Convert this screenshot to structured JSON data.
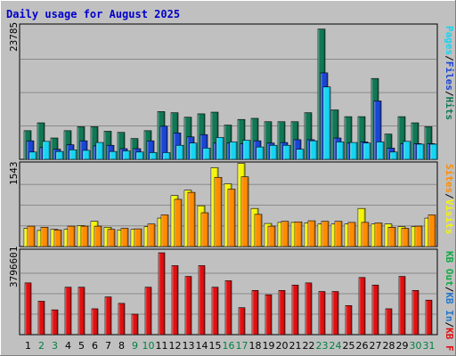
{
  "title": "Daily usage for August 2025",
  "colors": {
    "title": "#0000cc",
    "background": "#c0c0c0",
    "hits": "#117755",
    "files": "#1a46d6",
    "pages": "#17d4f2",
    "visits": "#f5f50a",
    "sites": "#ff8c00",
    "kbytes": "#e01010",
    "kb_in": "#2277cc",
    "kb_out": "#11aa44",
    "weekend": "#008040",
    "weekday": "#000000"
  },
  "chart_data": [
    {
      "type": "bar",
      "ymax_label": "23785",
      "ylim": [
        0,
        23785
      ],
      "legend": [
        {
          "label": "Hits",
          "color": "#117755"
        },
        {
          "label": "/",
          "color": "#000000"
        },
        {
          "label": "Files",
          "color": "#1a46d6"
        },
        {
          "label": "/",
          "color": "#000000"
        },
        {
          "label": "Pages",
          "color": "#17d4f2"
        }
      ],
      "categories": [
        "1",
        "2",
        "3",
        "4",
        "5",
        "6",
        "7",
        "8",
        "9",
        "10",
        "11",
        "12",
        "13",
        "14",
        "15",
        "16",
        "17",
        "18",
        "19",
        "20",
        "21",
        "22",
        "23",
        "24",
        "25",
        "26",
        "27",
        "28",
        "29",
        "30",
        "31"
      ],
      "series": [
        {
          "name": "Hits",
          "values": [
            5100,
            6500,
            3800,
            5100,
            5800,
            5800,
            5000,
            4800,
            3700,
            5100,
            8500,
            8300,
            7500,
            8100,
            8400,
            6100,
            7100,
            7300,
            6700,
            6700,
            6700,
            8300,
            23200,
            8800,
            7600,
            7600,
            14400,
            4500,
            7600,
            6500,
            5800
          ]
        },
        {
          "name": "Files",
          "values": [
            3300,
            2100,
            1800,
            2600,
            3300,
            2400,
            2500,
            1900,
            1900,
            3300,
            5900,
            4700,
            4000,
            4400,
            2900,
            2900,
            2800,
            3300,
            2900,
            3000,
            3500,
            3500,
            15400,
            3800,
            2900,
            3100,
            10400,
            2000,
            2800,
            2800,
            2800
          ]
        },
        {
          "name": "Pages",
          "values": [
            1300,
            3200,
            1400,
            1700,
            1600,
            3000,
            1400,
            1500,
            1300,
            1200,
            1200,
            2500,
            2900,
            2000,
            3900,
            3100,
            3400,
            2200,
            2500,
            2500,
            1800,
            3300,
            12900,
            3100,
            3000,
            2900,
            3100,
            1300,
            3200,
            2700,
            2700
          ]
        }
      ]
    },
    {
      "type": "bar",
      "ymax_label": "1543",
      "ylim": [
        0,
        1543
      ],
      "legend": [
        {
          "label": "Visits",
          "color": "#f5f50a"
        },
        {
          "label": "/",
          "color": "#000000"
        },
        {
          "label": "Sites",
          "color": "#ff8c00"
        }
      ],
      "categories": [
        "1",
        "2",
        "3",
        "4",
        "5",
        "6",
        "7",
        "8",
        "9",
        "10",
        "11",
        "12",
        "13",
        "14",
        "15",
        "16",
        "17",
        "18",
        "19",
        "20",
        "21",
        "22",
        "23",
        "24",
        "25",
        "26",
        "27",
        "28",
        "29",
        "30",
        "31"
      ],
      "series": [
        {
          "name": "Visits",
          "values": [
            340,
            300,
            320,
            320,
            390,
            470,
            360,
            310,
            320,
            370,
            530,
            950,
            1050,
            760,
            1470,
            1170,
            1550,
            710,
            430,
            450,
            450,
            440,
            420,
            420,
            420,
            710,
            420,
            420,
            370,
            370,
            530
          ]
        },
        {
          "name": "Sites",
          "values": [
            380,
            360,
            310,
            380,
            380,
            380,
            320,
            340,
            330,
            420,
            590,
            880,
            1010,
            630,
            1290,
            1070,
            1300,
            600,
            380,
            470,
            460,
            480,
            470,
            470,
            450,
            450,
            440,
            360,
            340,
            380,
            590
          ]
        }
      ]
    },
    {
      "type": "bar",
      "ymax_label": "3796601",
      "ylim": [
        0,
        3796601
      ],
      "legend": [
        {
          "label": "KB F",
          "color": "#e01010"
        },
        {
          "label": "/",
          "color": "#000000"
        },
        {
          "label": "KB In",
          "color": "#2277cc"
        },
        {
          "label": "/",
          "color": "#000000"
        },
        {
          "label": "KB Out",
          "color": "#11aa44"
        }
      ],
      "categories": [
        "1",
        "2",
        "3",
        "4",
        "5",
        "6",
        "7",
        "8",
        "9",
        "10",
        "11",
        "12",
        "13",
        "14",
        "15",
        "16",
        "17",
        "18",
        "19",
        "20",
        "21",
        "22",
        "23",
        "24",
        "25",
        "26",
        "27",
        "28",
        "29",
        "30",
        "31"
      ],
      "series": [
        {
          "name": "KB F",
          "values": [
            2400000,
            1550000,
            1150000,
            2200000,
            2200000,
            1200000,
            1750000,
            1450000,
            950000,
            2200000,
            3796601,
            3200000,
            2700000,
            3200000,
            2200000,
            2500000,
            1250000,
            2050000,
            1850000,
            2050000,
            2300000,
            2400000,
            2000000,
            2000000,
            1350000,
            2650000,
            2300000,
            1200000,
            2700000,
            2050000,
            1600000
          ]
        }
      ]
    }
  ],
  "weekend_days": [
    "2",
    "3",
    "9",
    "10",
    "16",
    "17",
    "23",
    "24",
    "30",
    "31"
  ]
}
